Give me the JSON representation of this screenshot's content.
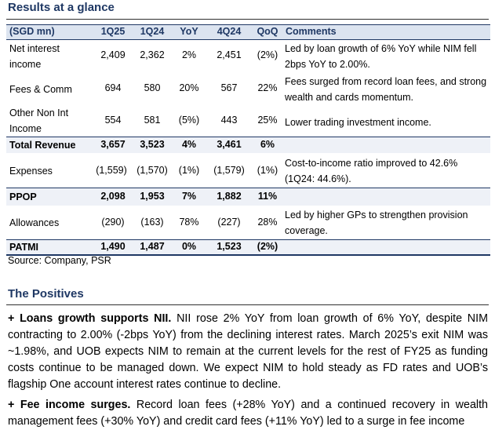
{
  "title": "Results at a glance",
  "table": {
    "headers": [
      "(SGD mn)",
      "1Q25",
      "1Q24",
      "YoY",
      "4Q24",
      "QoQ",
      "Comments"
    ],
    "rows": [
      {
        "label": "Net interest income",
        "values": [
          "2,409",
          "2,362",
          "2%",
          "2,451",
          "(2%)"
        ],
        "comment": "Led by loan growth of 6% YoY while NIM fell 2bps YoY to 2.00%."
      },
      {
        "label": "Fees & Comm",
        "values": [
          "694",
          "580",
          "20%",
          "567",
          "22%"
        ],
        "comment": "Fees surged from record loan fees, and strong wealth and cards momentum."
      },
      {
        "label": "Other Non Int Income",
        "values": [
          "554",
          "581",
          "(5%)",
          "443",
          "25%"
        ],
        "comment": "Lower trading investment income."
      },
      {
        "label": "Total Revenue",
        "values": [
          "3,657",
          "3,523",
          "4%",
          "3,461",
          "6%"
        ],
        "comment": ""
      },
      {
        "label": "Expenses",
        "values": [
          "(1,559)",
          "(1,570)",
          "(1%)",
          "(1,579)",
          "(1%)"
        ],
        "comment": "Cost-to-income ratio improved to 42.6% (1Q24: 44.6%)."
      },
      {
        "label": "PPOP",
        "values": [
          "2,098",
          "1,953",
          "7%",
          "1,882",
          "11%"
        ],
        "comment": ""
      },
      {
        "label": "Allowances",
        "values": [
          "(290)",
          "(163)",
          "78%",
          "(227)",
          "28%"
        ],
        "comment": "Led by higher GPs to strengthen provision coverage."
      },
      {
        "label": "PATMI",
        "values": [
          "1,490",
          "1,487",
          "0%",
          "1,523",
          "(2%)"
        ],
        "comment": ""
      }
    ]
  },
  "source": "Source: Company, PSR",
  "section_title": "The Positives",
  "paragraphs": [
    {
      "lead": "+ Loans growth supports NII.",
      "text": " NII rose 2% YoY from loan growth of 6% YoY, despite NIM contracting to 2.00% (-2bps YoY) from the declining interest rates. March 2025’s exit NIM was ~1.98%, and UOB expects NIM to remain at the current levels for the rest of FY25 as funding costs continue to be managed down. We expect NIM to hold steady as FD rates and UOB’s flagship One account interest rates continue to decline."
    },
    {
      "lead": "+ Fee income surges.",
      "text": " Record loan fees (+28% YoY) and a continued recovery in wealth management fees (+30% YoY) and credit card fees (+11% YoY) led to a surge in fee income"
    }
  ]
}
